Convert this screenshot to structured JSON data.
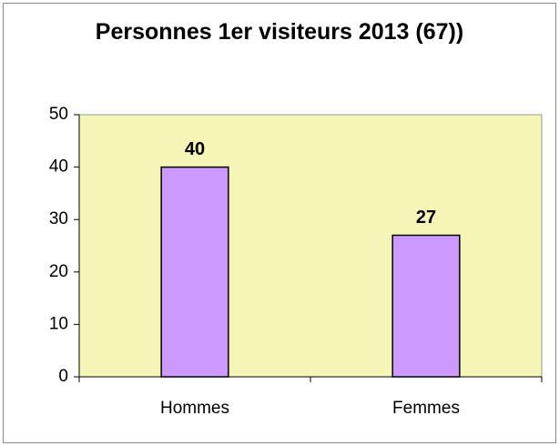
{
  "chart_data": {
    "type": "bar",
    "title": "Personnes 1er visiteurs 2013 (67))",
    "categories": [
      "Hommes",
      "Femmes"
    ],
    "values": [
      40,
      27
    ],
    "color": "#cc99ff",
    "plot_background": "#f5f5b8",
    "ylim": [
      0,
      50
    ],
    "yticks": [
      0,
      10,
      20,
      30,
      40,
      50
    ],
    "grid": false
  }
}
